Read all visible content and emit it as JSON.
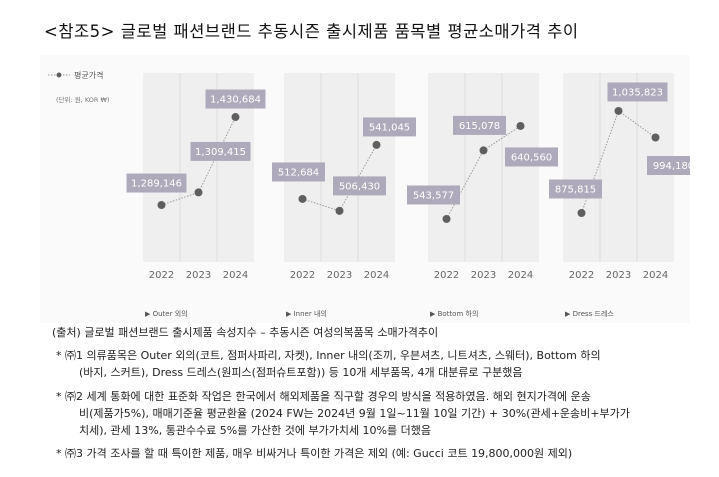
{
  "title": "<참조5> 글로벌 패션브랜드 추동시즌 출시제품 품목별 평균소매가격 추이",
  "chart_data": {
    "type": "line",
    "legend": "평균가격",
    "unit_note": "(단위: 원, KOR ₩)",
    "x": [
      "2022",
      "2023",
      "2024"
    ],
    "panels": [
      {
        "name": "▶ Outer 외의",
        "values": [
          1289146,
          1309415,
          1430684
        ],
        "labels": [
          "1,289,146",
          "1,309,415",
          "1,430,684"
        ],
        "ylim": [
          1197500,
          1501500
        ]
      },
      {
        "name": "▶ Inner 내의",
        "values": [
          512684,
          506430,
          541045
        ],
        "labels": [
          "512,684",
          "506,430",
          "541,045"
        ],
        "ylim": [
          479600,
          578800
        ]
      },
      {
        "name": "▶ Bottom 하의",
        "values": [
          543577,
          615078,
          640560
        ],
        "labels": [
          "543,577",
          "615,078",
          "640,560"
        ],
        "ylim": [
          498700,
          695800
        ]
      },
      {
        "name": "▶ Dress 드레스",
        "values": [
          875815,
          1035823,
          994180
        ],
        "labels": [
          "875,815",
          "1,035,823",
          "994,180"
        ],
        "ylim": [
          799000,
          1095300
        ]
      }
    ],
    "colors": {
      "point": "#5f5f5f",
      "label_bg": "#aeaabb",
      "panel_bg": "#efefef"
    }
  },
  "notes": {
    "source": "(출처) 글로벌 패션브랜드 출시제품 속성지수 – 추동시즌 여성의복품목 소매가격추이",
    "n1a": "* ㈜1 의류품목은 Outer 외의(코트, 점퍼사파리, 자켓), Inner 내의(조끼, 우븐셔츠, 니트셔츠,  스웨터), Bottom 하의",
    "n1b": "(바지, 스커트), Dress 드레스(원피스(점퍼슈트포함)) 등 10개 세부품목, 4개 대분류로 구분했음",
    "n2a": "* ㈜2 세계 통화에 대한 표준화 작업은 한국에서 해외제품을 직구할 경우의 방식을 적용하였음. 해외 현지가격에 운송",
    "n2b": "비(제품가5%), 매매기준율 평균환율 (2024 FW는  2024년 9월 1일~11월 10일 기간) + 30%(관세+운송비+부가가",
    "n2c": "치세), 관세 13%, 통관수수료 5%를 가산한 것에 부가가치세 10%를 더했음",
    "n3": "* ㈜3 가격 조사를 할 때 특이한 제품, 매우 비싸거나 특이한 가격은 제외 (예: Gucci 코트 19,800,000원 제외)"
  }
}
